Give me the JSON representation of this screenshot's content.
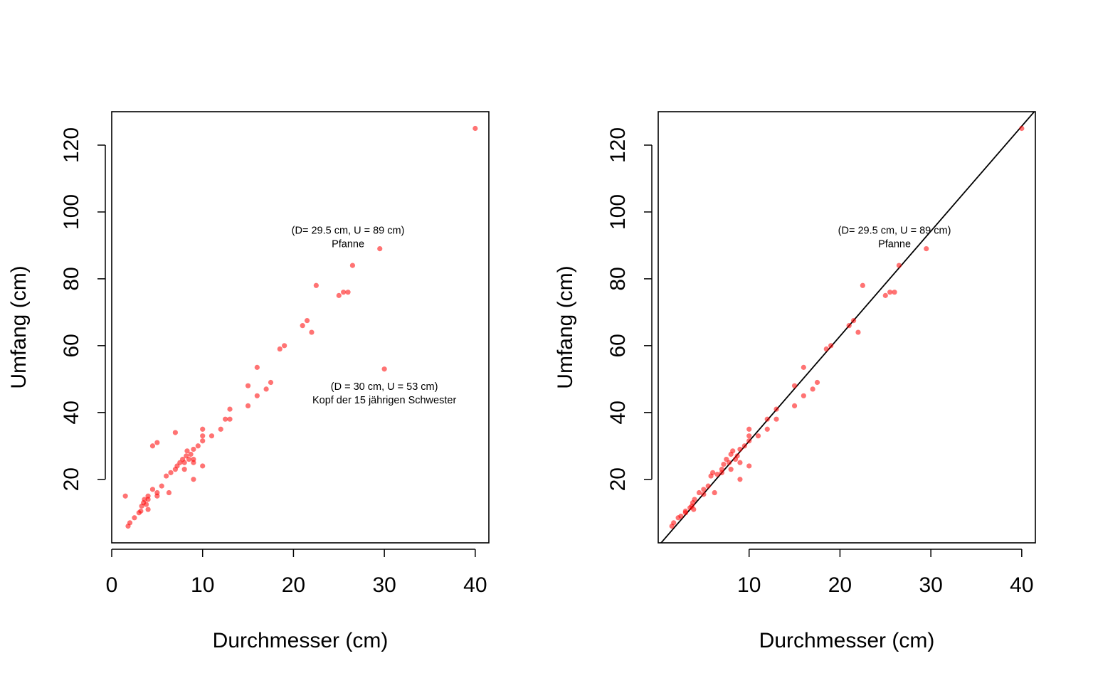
{
  "chart_data": [
    {
      "type": "scatter",
      "xlabel": "Durchmesser (cm)",
      "ylabel": "Umfang (cm)",
      "xlim": [
        0,
        41.5
      ],
      "ylim": [
        1,
        130
      ],
      "xticks": [
        "0",
        "10",
        "20",
        "30",
        "40"
      ],
      "yticks": [
        "20",
        "40",
        "60",
        "80",
        "100",
        "120"
      ],
      "point_color": "#ff0000",
      "annotations": [
        {
          "lines": [
            "(D= 29.5 cm, U = 89 cm)",
            "Pfanne"
          ],
          "x": 26,
          "y": 93.5
        },
        {
          "lines": [
            "(D = 30 cm, U = 53 cm)",
            "Kopf der 15 jährigen Schwester"
          ],
          "x": 30,
          "y": 46.8
        }
      ],
      "points": [
        [
          1.5,
          15
        ],
        [
          1.8,
          6
        ],
        [
          2,
          7
        ],
        [
          2.5,
          8.5
        ],
        [
          3,
          10
        ],
        [
          3.2,
          10.5
        ],
        [
          3.3,
          12
        ],
        [
          3.5,
          13
        ],
        [
          3.6,
          14
        ],
        [
          3.8,
          12.5
        ],
        [
          4,
          11
        ],
        [
          4,
          14
        ],
        [
          4,
          15
        ],
        [
          4.5,
          17
        ],
        [
          4.5,
          30
        ],
        [
          5,
          31
        ],
        [
          5,
          16
        ],
        [
          5,
          15
        ],
        [
          5.5,
          18
        ],
        [
          6,
          21
        ],
        [
          6.3,
          16
        ],
        [
          6.5,
          22
        ],
        [
          7,
          34
        ],
        [
          7,
          23
        ],
        [
          7.2,
          24
        ],
        [
          7.5,
          25
        ],
        [
          7.8,
          26
        ],
        [
          8,
          23
        ],
        [
          8,
          25
        ],
        [
          8.2,
          27
        ],
        [
          8.3,
          28.5
        ],
        [
          8.5,
          26
        ],
        [
          8.7,
          27.5
        ],
        [
          9,
          29
        ],
        [
          9,
          26
        ],
        [
          9,
          25
        ],
        [
          9,
          20
        ],
        [
          9.5,
          30
        ],
        [
          10,
          35
        ],
        [
          10,
          33
        ],
        [
          10,
          31.5
        ],
        [
          10,
          24
        ],
        [
          11,
          33
        ],
        [
          12,
          35
        ],
        [
          12.5,
          38
        ],
        [
          13,
          38
        ],
        [
          13,
          41
        ],
        [
          15,
          42
        ],
        [
          15,
          48
        ],
        [
          16,
          53.5
        ],
        [
          16,
          45
        ],
        [
          17,
          47
        ],
        [
          17.5,
          49
        ],
        [
          18.5,
          59
        ],
        [
          19,
          60
        ],
        [
          21,
          66
        ],
        [
          21.5,
          67.5
        ],
        [
          22,
          64
        ],
        [
          22.5,
          78
        ],
        [
          25,
          75
        ],
        [
          25.5,
          76
        ],
        [
          26,
          76
        ],
        [
          26.5,
          84
        ],
        [
          29.5,
          89
        ],
        [
          30,
          53
        ],
        [
          40,
          125
        ]
      ]
    },
    {
      "type": "scatter",
      "xlabel": "Durchmesser (cm)",
      "ylabel": "Umfang (cm)",
      "xlim": [
        0,
        41.5
      ],
      "ylim": [
        1,
        130
      ],
      "xticks": [
        "10",
        "20",
        "30",
        "40"
      ],
      "yticks": [
        "20",
        "40",
        "60",
        "80",
        "100",
        "120"
      ],
      "point_color": "#ff0000",
      "line_color": "#000000",
      "reference_line": {
        "intercept": 0,
        "slope": 3.1416
      },
      "annotations": [
        {
          "lines": [
            "(D= 29.5 cm, U = 89 cm)",
            "Pfanne"
          ],
          "x": 26,
          "y": 93.5
        }
      ],
      "points": [
        [
          1.5,
          6
        ],
        [
          1.7,
          7
        ],
        [
          2.2,
          8.5
        ],
        [
          2.5,
          9
        ],
        [
          3,
          10
        ],
        [
          3,
          10.5
        ],
        [
          3.5,
          11.5
        ],
        [
          3.7,
          12
        ],
        [
          3.8,
          13
        ],
        [
          3.9,
          11
        ],
        [
          4,
          14
        ],
        [
          4.5,
          16
        ],
        [
          5,
          17
        ],
        [
          5,
          15.5
        ],
        [
          5.5,
          18
        ],
        [
          5.8,
          21
        ],
        [
          6,
          22
        ],
        [
          6.2,
          16
        ],
        [
          6.5,
          21.5
        ],
        [
          7,
          22
        ],
        [
          7,
          23
        ],
        [
          7.2,
          24.5
        ],
        [
          7.5,
          26
        ],
        [
          7.8,
          25
        ],
        [
          8,
          23
        ],
        [
          8,
          27.5
        ],
        [
          8.2,
          28.5
        ],
        [
          8.5,
          26
        ],
        [
          8.7,
          27
        ],
        [
          9,
          29
        ],
        [
          9,
          25
        ],
        [
          9,
          20
        ],
        [
          9.5,
          30
        ],
        [
          10,
          35
        ],
        [
          10,
          33
        ],
        [
          10,
          31.5
        ],
        [
          10,
          24
        ],
        [
          11,
          33
        ],
        [
          12,
          35
        ],
        [
          12,
          38
        ],
        [
          13,
          38
        ],
        [
          13,
          41
        ],
        [
          15,
          42
        ],
        [
          15,
          48
        ],
        [
          16,
          53.5
        ],
        [
          16,
          45
        ],
        [
          17,
          47
        ],
        [
          17.5,
          49
        ],
        [
          18.5,
          59
        ],
        [
          19,
          60
        ],
        [
          21,
          66
        ],
        [
          21.5,
          67.5
        ],
        [
          22,
          64
        ],
        [
          22.5,
          78
        ],
        [
          25,
          75
        ],
        [
          25.5,
          76
        ],
        [
          26,
          76
        ],
        [
          26.5,
          84
        ],
        [
          29.5,
          89
        ],
        [
          40,
          125
        ]
      ]
    }
  ]
}
